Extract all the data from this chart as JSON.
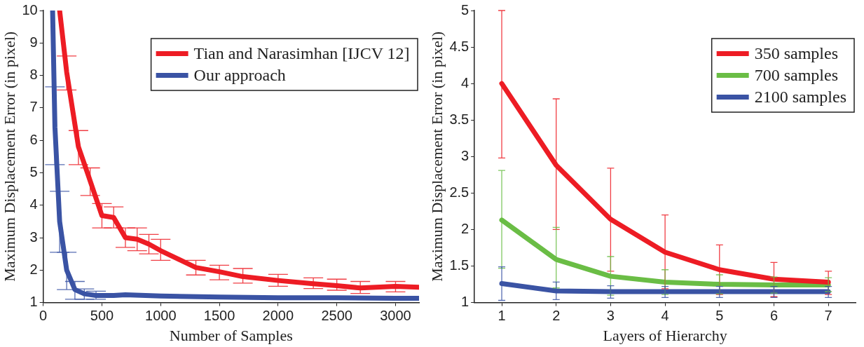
{
  "chart_data": [
    {
      "type": "line",
      "xlabel": "Number of Samples",
      "ylabel": "Maximum Displacement Error (in pixel)",
      "xlim": [
        0,
        3200
      ],
      "xticks": [
        0,
        500,
        1000,
        1500,
        2000,
        2500,
        3000
      ],
      "ylim": [
        1,
        10
      ],
      "yticks": [
        1,
        2,
        3,
        4,
        5,
        6,
        7,
        8,
        9,
        10
      ],
      "legend": "top right",
      "series": [
        {
          "name": "Tian and Narasimhan [IJCV 12]",
          "color": "#ed1c24",
          "x": [
            140,
            200,
            300,
            400,
            500,
            600,
            700,
            800,
            900,
            1000,
            1300,
            1500,
            1700,
            2000,
            2300,
            2500,
            2700,
            3000,
            3200
          ],
          "values": [
            10,
            8.1,
            5.8,
            4.75,
            3.68,
            3.62,
            3.0,
            2.95,
            2.8,
            2.6,
            2.08,
            1.95,
            1.8,
            1.68,
            1.58,
            1.52,
            1.45,
            1.5,
            1.47
          ],
          "errors": [
            null,
            [
              7.55,
              8.6
            ],
            [
              5.25,
              6.3
            ],
            [
              4.3,
              5.15
            ],
            [
              3.3,
              4.05
            ],
            [
              3.3,
              3.95
            ],
            [
              2.7,
              3.3
            ],
            [
              2.6,
              3.3
            ],
            [
              2.5,
              3.1
            ],
            [
              2.3,
              2.95
            ],
            [
              1.85,
              2.3
            ],
            [
              1.7,
              2.15
            ],
            [
              1.6,
              2.05
            ],
            [
              1.5,
              1.87
            ],
            [
              1.43,
              1.76
            ],
            [
              1.38,
              1.72
            ],
            [
              1.28,
              1.65
            ],
            [
              1.33,
              1.65
            ],
            null
          ]
        },
        {
          "name": "Our approach",
          "color": "#3a53a4",
          "x": [
            80,
            100,
            140,
            200,
            270,
            350,
            450,
            600,
            700,
            1000,
            1500,
            2000,
            2500,
            3000,
            3200
          ],
          "values": [
            10,
            6.4,
            3.5,
            2.0,
            1.4,
            1.27,
            1.22,
            1.22,
            1.24,
            1.2,
            1.17,
            1.15,
            1.15,
            1.13,
            1.13
          ],
          "errors": [
            null,
            [
              5.25,
              7.65
            ],
            [
              2.55,
              4.43
            ],
            [
              1.4,
              2.55
            ],
            [
              1.1,
              1.65
            ],
            [
              1.1,
              1.42
            ],
            [
              1.1,
              1.35
            ],
            null,
            null,
            null,
            null,
            null,
            null,
            null,
            null
          ]
        }
      ]
    },
    {
      "type": "line",
      "xlabel": "Layers of Hierarchy",
      "ylabel": "Maximum Displacement Error (in pixel)",
      "xlim": [
        0.5,
        7.5
      ],
      "xticks": [
        1,
        2,
        3,
        4,
        5,
        6,
        7
      ],
      "ylim": [
        1,
        5
      ],
      "yticks": [
        1,
        1.5,
        2,
        2.5,
        3,
        3.5,
        4,
        4.5,
        5
      ],
      "legend": "top right",
      "series": [
        {
          "name": "350 samples",
          "color": "#ed1c24",
          "x": [
            1,
            2,
            3,
            4,
            5,
            6,
            7
          ],
          "values": [
            4.0,
            2.88,
            2.14,
            1.69,
            1.45,
            1.32,
            1.28
          ],
          "errors": [
            [
              2.98,
              5.0
            ],
            [
              2.0,
              3.79
            ],
            [
              1.43,
              2.84
            ],
            [
              1.19,
              2.2
            ],
            [
              1.11,
              1.79
            ],
            [
              1.08,
              1.55
            ],
            [
              1.11,
              1.43
            ]
          ]
        },
        {
          "name": "700 samples",
          "color": "#6abd45",
          "x": [
            1,
            2,
            3,
            4,
            5,
            6,
            7
          ],
          "values": [
            2.13,
            1.59,
            1.36,
            1.28,
            1.25,
            1.24,
            1.24
          ],
          "errors": [
            [
              1.47,
              2.81
            ],
            [
              1.2,
              2.03
            ],
            [
              1.1,
              1.63
            ],
            [
              1.11,
              1.45
            ],
            [
              1.12,
              1.38
            ],
            [
              1.13,
              1.35
            ],
            [
              1.15,
              1.34
            ]
          ]
        },
        {
          "name": "2100 samples",
          "color": "#3a53a4",
          "x": [
            1,
            2,
            3,
            4,
            5,
            6,
            7
          ],
          "values": [
            1.26,
            1.16,
            1.15,
            1.15,
            1.15,
            1.15,
            1.15
          ],
          "errors": [
            [
              1.03,
              1.49
            ],
            [
              1.04,
              1.28
            ],
            [
              1.06,
              1.23
            ],
            [
              1.07,
              1.22
            ],
            [
              1.07,
              1.22
            ],
            [
              1.07,
              1.22
            ],
            [
              1.07,
              1.22
            ]
          ]
        }
      ]
    }
  ]
}
